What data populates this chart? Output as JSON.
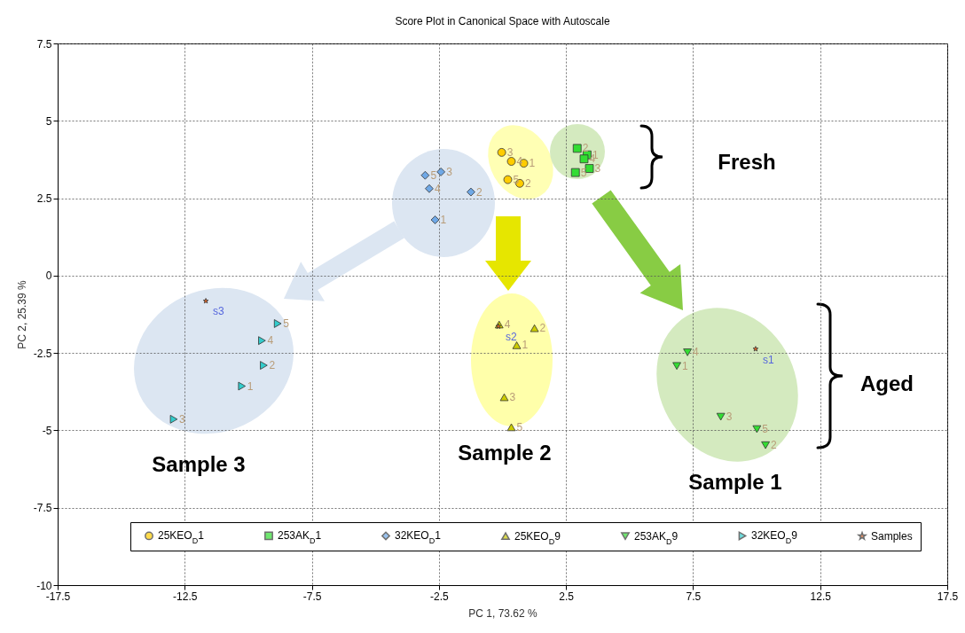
{
  "chart_data": {
    "type": "scatter",
    "title": "Score Plot in Canonical Space with Autoscale",
    "xlabel": "PC 1,    73.62 %",
    "ylabel": "PC 2,    25.39 %",
    "xlim": [
      -17.5,
      17.5
    ],
    "xticks": [
      -17.5,
      -12.5,
      -7.5,
      -2.5,
      2.5,
      7.5,
      12.5,
      17.5
    ],
    "ylim": [
      -10,
      7.5
    ],
    "yticks": [
      -10,
      -7.5,
      -5,
      -2.5,
      0,
      2.5,
      5,
      7.5
    ],
    "grid": true,
    "legend": "bottom",
    "series": [
      {
        "name": "25KEO$_{D}$1",
        "color": "#ffcc00",
        "marker": "circle",
        "x": [
          0.84,
          0.68,
          -0.03,
          0.35,
          0.21
        ],
        "values": [
          3.63,
          2.98,
          3.98,
          3.69,
          3.1
        ]
      },
      {
        "name": "253AK$_{D}$1",
        "color": "#33dd33",
        "marker": "square",
        "x": [
          3.33,
          2.94,
          3.42,
          3.21,
          2.87
        ],
        "values": [
          3.9,
          4.11,
          3.46,
          3.77,
          3.33
        ]
      },
      {
        "name": "32KEO$_{D}$1",
        "color": "#6fa8e6",
        "marker": "diamond",
        "x": [
          -2.65,
          -1.24,
          -2.42,
          -2.88,
          -3.04
        ],
        "values": [
          1.8,
          2.7,
          3.35,
          2.81,
          3.24
        ]
      },
      {
        "name": "25KEO$_{D}$9",
        "color": "#cccc00",
        "marker": "triangle",
        "x": [
          0.56,
          1.26,
          0.07,
          -0.13,
          0.35
        ],
        "values": [
          -2.25,
          -1.7,
          -3.93,
          -1.58,
          -4.9
        ]
      },
      {
        "name": "253AK$_{D}$9",
        "color": "#33dd33",
        "marker": "triangle-down",
        "x": [
          6.86,
          10.35,
          8.59,
          7.28,
          10.01
        ],
        "values": [
          -2.92,
          -5.48,
          -4.56,
          -2.48,
          -4.96
        ]
      },
      {
        "name": "32KEO$_{D}$9",
        "color": "#33cccc",
        "marker": "triangle-right",
        "x": [
          -10.25,
          -9.39,
          -12.93,
          -9.46,
          -8.84
        ],
        "values": [
          -3.57,
          -2.9,
          -4.64,
          -2.1,
          -1.55
        ]
      },
      {
        "name": "Samples",
        "color": "#ee6622",
        "marker": "star",
        "x": [
          9.96,
          -0.16,
          -11.67
        ],
        "values": [
          -2.37,
          -1.64,
          -0.82
        ]
      }
    ],
    "annotations": [
      {
        "text": "1",
        "x": 0.84,
        "y": 3.63
      },
      {
        "text": "2",
        "x": 0.68,
        "y": 2.98
      },
      {
        "text": "3",
        "x": -0.03,
        "y": 3.98
      },
      {
        "text": "4",
        "x": 0.35,
        "y": 3.69
      },
      {
        "text": "5",
        "x": 0.21,
        "y": 3.1
      },
      {
        "text": "1",
        "x": 3.33,
        "y": 3.9
      },
      {
        "text": "2",
        "x": 2.94,
        "y": 4.11
      },
      {
        "text": "3",
        "x": 3.42,
        "y": 3.46
      },
      {
        "text": "4",
        "x": 3.21,
        "y": 3.77
      },
      {
        "text": "5",
        "x": 2.87,
        "y": 3.33
      },
      {
        "text": "1",
        "x": -2.65,
        "y": 1.8
      },
      {
        "text": "2",
        "x": -1.24,
        "y": 2.7
      },
      {
        "text": "3",
        "x": -2.42,
        "y": 3.35
      },
      {
        "text": "4",
        "x": -2.88,
        "y": 2.81
      },
      {
        "text": "5",
        "x": -3.04,
        "y": 3.24
      },
      {
        "text": "1",
        "x": 0.56,
        "y": -2.25
      },
      {
        "text": "2",
        "x": 1.26,
        "y": -1.7
      },
      {
        "text": "3",
        "x": 0.07,
        "y": -3.93
      },
      {
        "text": "4",
        "x": -0.13,
        "y": -1.58
      },
      {
        "text": "5",
        "x": 0.35,
        "y": -4.9
      },
      {
        "text": "1",
        "x": 6.86,
        "y": -2.92
      },
      {
        "text": "2",
        "x": 10.35,
        "y": -5.48
      },
      {
        "text": "3",
        "x": 8.59,
        "y": -4.56
      },
      {
        "text": "4",
        "x": 7.28,
        "y": -2.48
      },
      {
        "text": "5",
        "x": 10.01,
        "y": -4.96
      },
      {
        "text": "1",
        "x": -10.25,
        "y": -3.57
      },
      {
        "text": "2",
        "x": -9.39,
        "y": -2.9
      },
      {
        "text": "3",
        "x": -12.93,
        "y": -4.64
      },
      {
        "text": "4",
        "x": -9.46,
        "y": -2.1
      },
      {
        "text": "5",
        "x": -8.84,
        "y": -1.55
      },
      {
        "text": "s1",
        "x": 9.96,
        "y": -2.37
      },
      {
        "text": "s2",
        "x": -0.16,
        "y": -1.64
      },
      {
        "text": "s3",
        "x": -11.67,
        "y": -0.82
      },
      "Fresh",
      "Aged",
      "Sample 3",
      "Sample 2",
      "Sample 1"
    ]
  }
}
